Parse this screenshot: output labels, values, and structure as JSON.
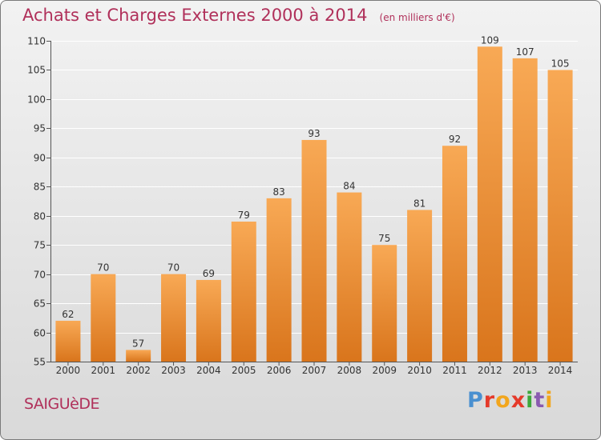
{
  "header": {
    "title": "Achats et Charges Externes 2000 à 2014",
    "subtitle": "(en milliers d'€)"
  },
  "footer": {
    "town": "SAIGUèDE",
    "logo_text": "Proxiti"
  },
  "colors": {
    "bar_top": "#f8a955",
    "bar_bottom": "#d9751c",
    "title": "#b0305a"
  },
  "chart_data": {
    "type": "bar",
    "title": "Achats et Charges Externes 2000 à 2014",
    "subtitle": "(en milliers d'€)",
    "categories": [
      "2000",
      "2001",
      "2002",
      "2003",
      "2004",
      "2005",
      "2006",
      "2007",
      "2008",
      "2009",
      "2010",
      "2011",
      "2012",
      "2013",
      "2014"
    ],
    "values": [
      62,
      70,
      57,
      70,
      69,
      79,
      83,
      93,
      84,
      75,
      81,
      92,
      109,
      107,
      105
    ],
    "ylim": [
      55,
      110
    ],
    "yticks": [
      55,
      60,
      65,
      70,
      75,
      80,
      85,
      90,
      95,
      100,
      105,
      110
    ],
    "grid": true,
    "data_labels": true
  }
}
